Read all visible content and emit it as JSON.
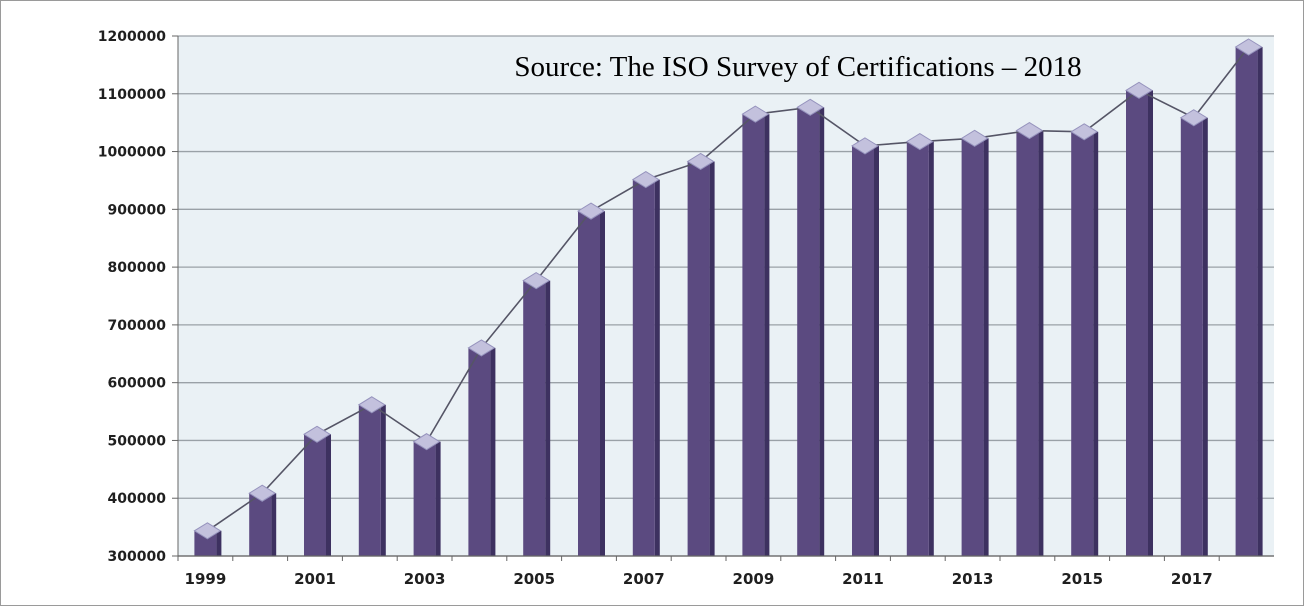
{
  "chart_data": {
    "type": "bar",
    "title": "",
    "annotation": "Source: The ISO Survey of Certifications – 2018",
    "xlabel": "",
    "ylabel": "",
    "categories": [
      "1999",
      "2000",
      "2001",
      "2002",
      "2003",
      "2004",
      "2005",
      "2006",
      "2007",
      "2008",
      "2009",
      "2010",
      "2011",
      "2012",
      "2013",
      "2014",
      "2015",
      "2016",
      "2017",
      "2018"
    ],
    "x_tick_labels": [
      "1999",
      "2001",
      "2003",
      "2005",
      "2007",
      "2009",
      "2011",
      "2013",
      "2015",
      "2017"
    ],
    "values": [
      343643,
      408631,
      510616,
      561747,
      497919,
      660132,
      776608,
      896929,
      951486,
      982832,
      1064785,
      1076525,
      1009845,
      1017279,
      1022877,
      1036321,
      1034180,
      1105937,
      1058504,
      1180965
    ],
    "ylim": [
      300000,
      1200000
    ],
    "y_ticks": [
      300000,
      400000,
      500000,
      600000,
      700000,
      800000,
      900000,
      1000000,
      1100000,
      1200000
    ],
    "grid": true,
    "legend": "none",
    "overlay_line": true,
    "colors": {
      "bar": "#5b4a80",
      "bar_side": "#3d3160",
      "bar_top": "#8a7fb3",
      "marker": "#c3c1dd",
      "marker_edge": "#9693bd",
      "line": "#555566",
      "plot_bg": "#eaf1f5",
      "grid": "#9aa1a7",
      "axis": "#666666"
    }
  }
}
